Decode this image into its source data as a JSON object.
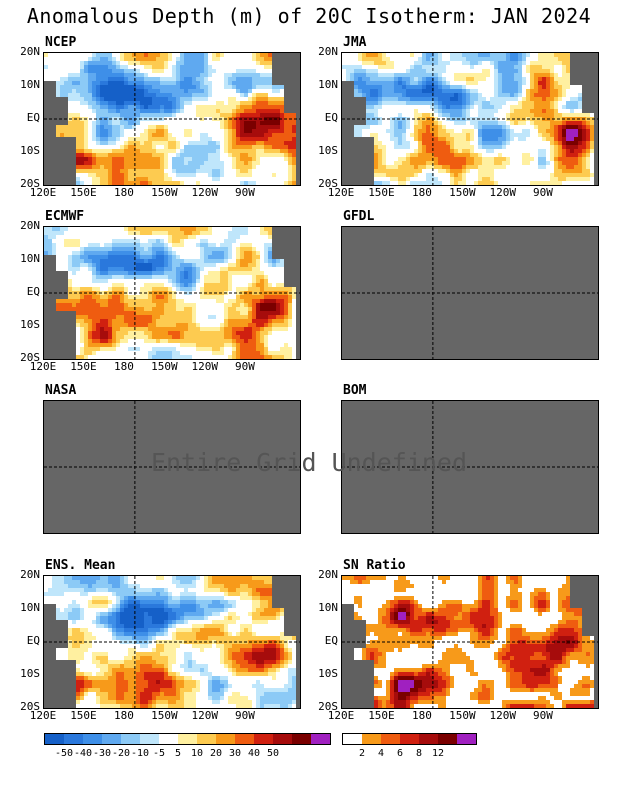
{
  "title": "Anomalous Depth (m) of 20C Isotherm: JAN 2024",
  "undefined_message": "Entire Grid Undefined",
  "colors": {
    "grey_undefined": "#666666",
    "land": "#606060",
    "anomaly_scale": [
      "#1560c8",
      "#2a78dc",
      "#3e8fe8",
      "#5fa9f0",
      "#8ccaf6",
      "#bfe6fb",
      "#ffffff",
      "#fff0a0",
      "#fdcb50",
      "#f79a1a",
      "#ef5c10",
      "#d02010",
      "#a60c0c",
      "#7a0000",
      "#a020c0"
    ],
    "sn_scale": [
      "#ffffff",
      "#f79a1a",
      "#ef5c10",
      "#d02010",
      "#a60c0c",
      "#7a0000",
      "#a020c0"
    ]
  },
  "axes": {
    "lat_labels": [
      "20N",
      "10N",
      "EQ",
      "10S",
      "20S"
    ],
    "lon_labels": [
      "120E",
      "150E",
      "180",
      "150W",
      "120W",
      "90W"
    ]
  },
  "panels": [
    {
      "key": "ncep",
      "title": "NCEP",
      "defined": true
    },
    {
      "key": "jma",
      "title": "JMA",
      "defined": true
    },
    {
      "key": "ecmwf",
      "title": "ECMWF",
      "defined": true
    },
    {
      "key": "gfdl",
      "title": "GFDL",
      "defined": false
    },
    {
      "key": "nasa",
      "title": "NASA",
      "defined": false
    },
    {
      "key": "bom",
      "title": "BOM",
      "defined": false
    },
    {
      "key": "ens",
      "title": "ENS. Mean",
      "defined": true
    },
    {
      "key": "sn",
      "title": "SN Ratio",
      "defined": true
    }
  ],
  "chart_data": {
    "type": "heatmap",
    "title": "Anomalous Depth (m) of 20C Isotherm: JAN 2024",
    "x_range": [
      "120E",
      "70W"
    ],
    "y_range": [
      "20S",
      "20N"
    ],
    "anomaly_colorbar_ticks": [
      "-50",
      "-40",
      "-30",
      "-20",
      "-10",
      "-5",
      "5",
      "10",
      "20",
      "30",
      "40",
      "50"
    ],
    "sn_colorbar_ticks": [
      "2",
      "4",
      "6",
      "8",
      "12"
    ],
    "qualitative_pattern": "positive anomalies (warm colors) in eastern Pacific and south-west Pacific; negative anomalies (blue) along 10N band in west-central Pacific"
  }
}
